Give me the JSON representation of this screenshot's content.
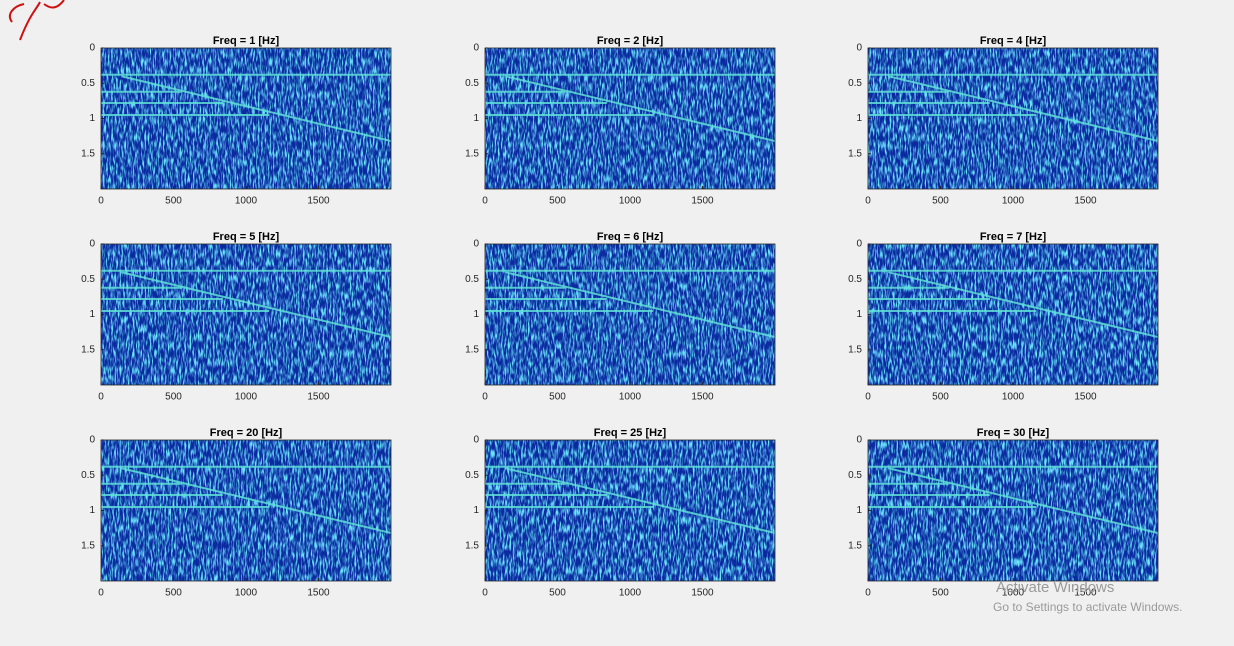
{
  "chart_data": [
    {
      "type": "heatmap",
      "title": "Freq = 1 [Hz]",
      "xlim": [
        0,
        2000
      ],
      "xticks": [
        0,
        500,
        1000,
        1500
      ],
      "ylim": [
        0,
        2
      ],
      "yticks": [
        0,
        0.5,
        1,
        1.5
      ],
      "y_reversed": true
    },
    {
      "type": "heatmap",
      "title": "Freq = 2 [Hz]",
      "xlim": [
        0,
        2000
      ],
      "xticks": [
        0,
        500,
        1000,
        1500
      ],
      "ylim": [
        0,
        2
      ],
      "yticks": [
        0,
        0.5,
        1,
        1.5
      ],
      "y_reversed": true
    },
    {
      "type": "heatmap",
      "title": "Freq = 4 [Hz]",
      "xlim": [
        0,
        2000
      ],
      "xticks": [
        0,
        500,
        1000,
        1500
      ],
      "ylim": [
        0,
        2
      ],
      "yticks": [
        0,
        0.5,
        1,
        1.5
      ],
      "y_reversed": true
    },
    {
      "type": "heatmap",
      "title": "Freq = 5 [Hz]",
      "xlim": [
        0,
        2000
      ],
      "xticks": [
        0,
        500,
        1000,
        1500
      ],
      "ylim": [
        0,
        2
      ],
      "yticks": [
        0,
        0.5,
        1,
        1.5
      ],
      "y_reversed": true
    },
    {
      "type": "heatmap",
      "title": "Freq = 6 [Hz]",
      "xlim": [
        0,
        2000
      ],
      "xticks": [
        0,
        500,
        1000,
        1500
      ],
      "ylim": [
        0,
        2
      ],
      "yticks": [
        0,
        0.5,
        1,
        1.5
      ],
      "y_reversed": true
    },
    {
      "type": "heatmap",
      "title": "Freq = 7 [Hz]",
      "xlim": [
        0,
        2000
      ],
      "xticks": [
        0,
        500,
        1000,
        1500
      ],
      "ylim": [
        0,
        2
      ],
      "yticks": [
        0,
        0.5,
        1,
        1.5
      ],
      "y_reversed": true
    },
    {
      "type": "heatmap",
      "title": "Freq = 20 [Hz]",
      "xlim": [
        0,
        2000
      ],
      "xticks": [
        0,
        500,
        1000,
        1500
      ],
      "ylim": [
        0,
        2
      ],
      "yticks": [
        0,
        0.5,
        1,
        1.5
      ],
      "y_reversed": true
    },
    {
      "type": "heatmap",
      "title": "Freq = 25 [Hz]",
      "xlim": [
        0,
        2000
      ],
      "xticks": [
        0,
        500,
        1000,
        1500
      ],
      "ylim": [
        0,
        2
      ],
      "yticks": [
        0,
        0.5,
        1,
        1.5
      ],
      "y_reversed": true
    },
    {
      "type": "heatmap",
      "title": "Freq = 30 [Hz]",
      "xlim": [
        0,
        2000
      ],
      "xticks": [
        0,
        500,
        1000,
        1500
      ],
      "ylim": [
        0,
        2
      ],
      "yticks": [
        0,
        0.5,
        1,
        1.5
      ],
      "y_reversed": true
    }
  ],
  "overlay": {
    "title": "Activate Windows",
    "subtitle": "Go to Settings to activate Windows."
  }
}
